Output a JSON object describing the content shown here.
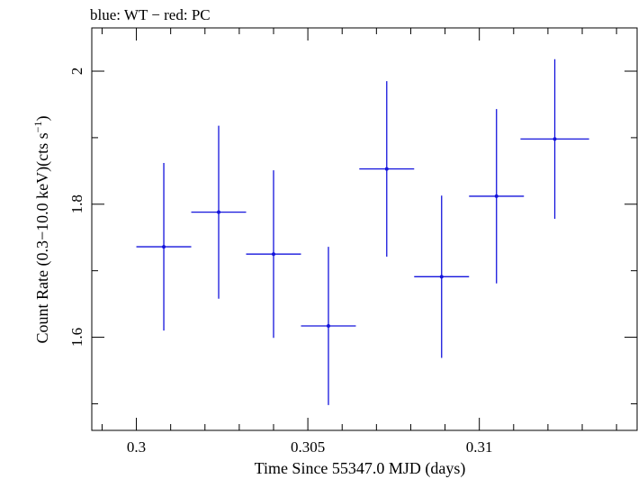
{
  "chart_data": {
    "type": "scatter",
    "title": "blue: WT − red: PC",
    "xlabel": "Time Since 55347.0 MJD (days)",
    "ylabel_main": "Count Rate (0.3−10.0 keV)(cts s",
    "ylabel_sup": "−1",
    "ylabel_close": ")",
    "xlim": [
      0.2987,
      0.3146
    ],
    "ylim": [
      1.46,
      2.065
    ],
    "xticks_major": [
      0.3,
      0.305,
      0.31
    ],
    "xtick_labels": [
      "0.3",
      "0.305",
      "0.31"
    ],
    "yticks_major": [
      1.6,
      1.8,
      2.0
    ],
    "ytick_labels": [
      "1.6",
      "1.8",
      "2"
    ],
    "x_minor_step": 0.001,
    "y_minor_step": 0.1,
    "grid": false,
    "series": [
      {
        "color": "#1414dc",
        "points": [
          {
            "x": 0.3008,
            "y": 1.736,
            "xerr": 0.0008,
            "yerr": 0.126
          },
          {
            "x": 0.3024,
            "y": 1.788,
            "xerr": 0.0008,
            "yerr": 0.13
          },
          {
            "x": 0.304,
            "y": 1.725,
            "xerr": 0.0008,
            "yerr": 0.126
          },
          {
            "x": 0.3056,
            "y": 1.617,
            "xerr": 0.0008,
            "yerr": 0.119
          },
          {
            "x": 0.3073,
            "y": 1.853,
            "xerr": 0.0008,
            "yerr": 0.132
          },
          {
            "x": 0.3089,
            "y": 1.691,
            "xerr": 0.0008,
            "yerr": 0.122
          },
          {
            "x": 0.3105,
            "y": 1.812,
            "xerr": 0.0008,
            "yerr": 0.131
          },
          {
            "x": 0.3122,
            "y": 1.898,
            "xerr": 0.001,
            "yerr": 0.12
          }
        ]
      }
    ]
  }
}
